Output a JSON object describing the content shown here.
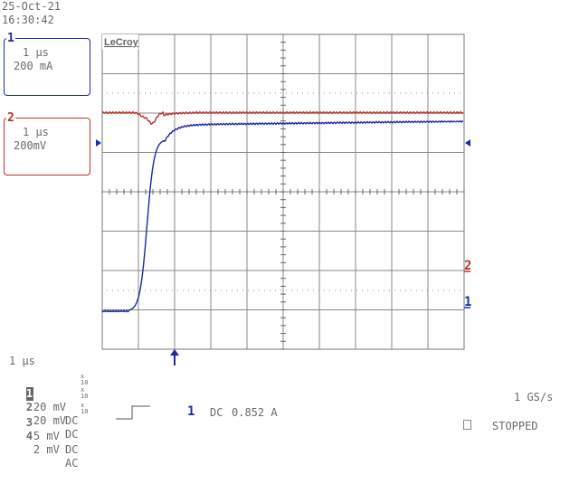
{
  "header": {
    "date": "25-Oct-21",
    "time": "16:30:42"
  },
  "channel1": {
    "number": "1",
    "timebase": "1 µs",
    "scale": "200 mA",
    "color": "#1a2aa0"
  },
  "channel2": {
    "number": "2",
    "timebase": "1 µs",
    "scale": "200mV",
    "color": "#b83228"
  },
  "brand": "LeCroy",
  "timebase": "1 µs",
  "channels": [
    {
      "num": "1",
      "volts": "20 mV",
      "coupling": "DC"
    },
    {
      "num": "2",
      "volts": "20 mV",
      "coupling": "DC"
    },
    {
      "num": "3",
      "volts": "5 mV",
      "coupling": "DC"
    },
    {
      "num": "4",
      "volts": "2 mV",
      "coupling": "AC"
    }
  ],
  "trigger": {
    "source": "1",
    "coupling": "DC",
    "level": "0.852 A"
  },
  "sample_rate": "1 GS/s",
  "status": "STOPPED",
  "trace_labels": {
    "ch2": "2",
    "ch1": "1"
  }
}
